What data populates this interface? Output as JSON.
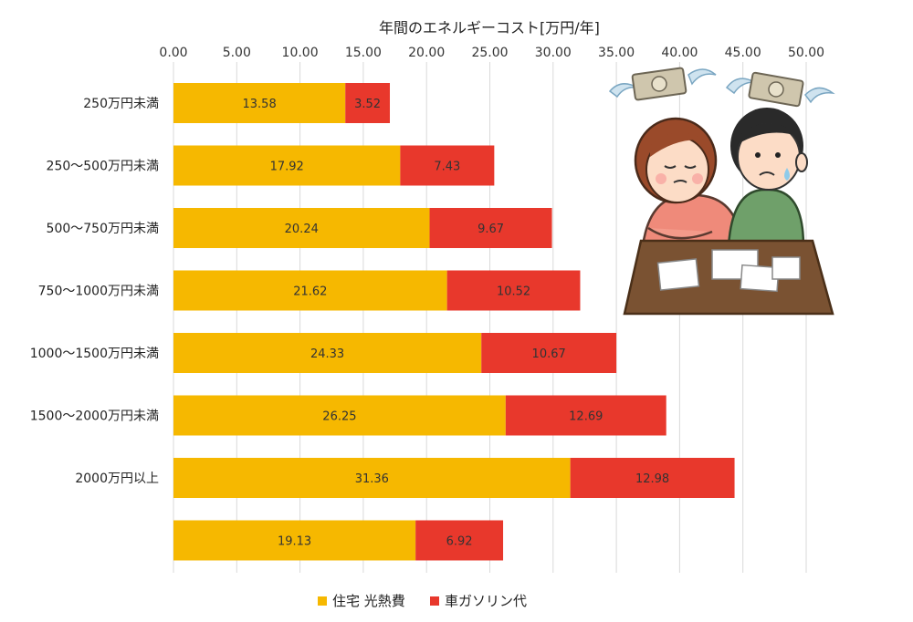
{
  "chart_data": {
    "type": "bar",
    "orientation": "horizontal",
    "stacked": true,
    "title": "",
    "xlabel": "年間のエネルギーコスト[万円/年]",
    "ylabel": "",
    "xlim": [
      0,
      50
    ],
    "x_ticks": [
      "0.00",
      "5.00",
      "10.00",
      "15.00",
      "20.00",
      "25.00",
      "30.00",
      "35.00",
      "40.00",
      "45.00",
      "50.00"
    ],
    "grid": "vertical",
    "legend_position": "bottom",
    "categories": [
      "250万円未満",
      "250～500万円未満",
      "500～750万円未満",
      "750～1000万円未満",
      "1000～1500万円未満",
      "1500～2000万円未満",
      "2000万円以上",
      ""
    ],
    "series": [
      {
        "name": "住宅 光熱費",
        "color": "#f6b800",
        "values": [
          13.58,
          17.92,
          20.24,
          21.62,
          24.33,
          26.25,
          31.36,
          19.13
        ],
        "labels": [
          "13.58",
          "17.92",
          "20.24",
          "21.62",
          "24.33",
          "26.25",
          "31.36",
          "19.13"
        ]
      },
      {
        "name": "車ガソリン代",
        "color": "#e8382c",
        "values": [
          3.52,
          7.43,
          9.67,
          10.52,
          10.67,
          12.69,
          12.98,
          6.92
        ],
        "labels": [
          "3.52",
          "7.43",
          "9.67",
          "10.52",
          "10.67",
          "12.69",
          "12.98",
          "6.92"
        ]
      }
    ]
  },
  "illustration": {
    "icon": "worried-couple-flying-money-icon"
  }
}
